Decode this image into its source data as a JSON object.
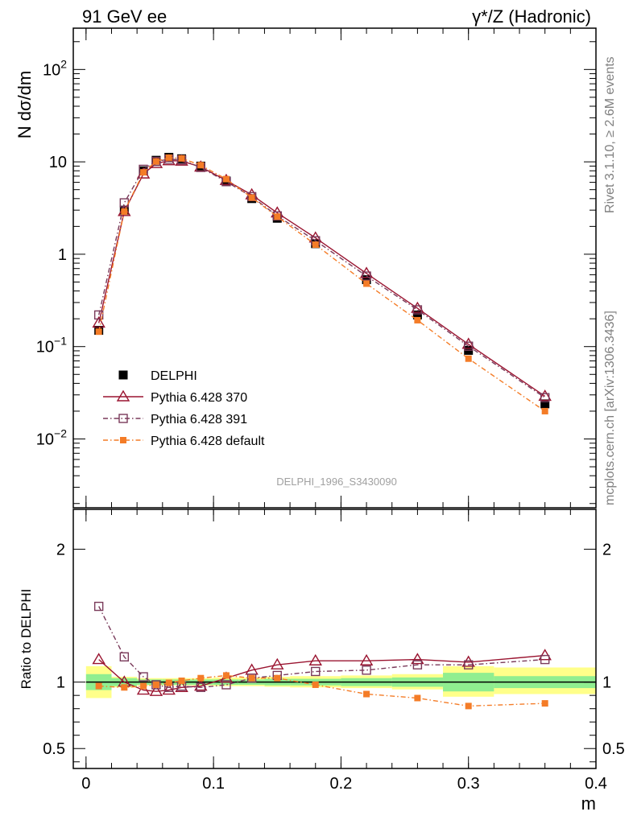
{
  "header": {
    "left": "91 GeV ee",
    "right": "γ*/Z (Hadronic)"
  },
  "side_labels": {
    "rivet": "Rivet 3.1.10, ≥ 2.6M events",
    "mcplots": "mcplots.cern.ch [arXiv:1306.3436]"
  },
  "watermark": "DELPHI_1996_S3430090",
  "chart_data": [
    {
      "type": "line",
      "panel": "main",
      "ylabel": "N dσ/dm",
      "xlabel": "m",
      "yscale": "log",
      "xlim": [
        -0.01,
        0.4
      ],
      "ylim": [
        0.0018,
        280
      ],
      "ytick_labels": [
        "10^-2",
        "10^-1",
        "1",
        "10",
        "10^2"
      ],
      "x": [
        0.01,
        0.03,
        0.045,
        0.055,
        0.065,
        0.075,
        0.09,
        0.11,
        0.13,
        0.15,
        0.18,
        0.22,
        0.26,
        0.3,
        0.36
      ],
      "series": [
        {
          "name": "DELPHI",
          "color": "#000000",
          "marker": "filled-square",
          "line": "none",
          "values": [
            0.15,
            3.0,
            8.0,
            10.4,
            11.2,
            10.8,
            9.0,
            6.2,
            4.0,
            2.45,
            1.3,
            0.53,
            0.22,
            0.091,
            0.024
          ]
        },
        {
          "name": "Pythia 6.428 370",
          "color": "#9a1430",
          "marker": "open-triangle",
          "line": "solid",
          "values": [
            0.18,
            2.9,
            7.4,
            9.6,
            10.3,
            10.2,
            8.8,
            6.3,
            4.4,
            2.8,
            1.5,
            0.62,
            0.26,
            0.106,
            0.029
          ]
        },
        {
          "name": "Pythia 6.428 391",
          "color": "#7a3a5a",
          "marker": "open-square",
          "line": "dashdot",
          "values": [
            0.22,
            3.6,
            8.3,
            10.1,
            10.7,
            10.5,
            8.7,
            6.1,
            4.2,
            2.6,
            1.4,
            0.58,
            0.25,
            0.101,
            0.028
          ]
        },
        {
          "name": "Pythia 6.428 default",
          "color": "#f47c27",
          "marker": "filled-square-small",
          "line": "dashdot",
          "values": [
            0.145,
            2.9,
            7.7,
            10.1,
            11.1,
            10.9,
            9.2,
            6.5,
            4.1,
            2.55,
            1.27,
            0.48,
            0.193,
            0.074,
            0.02
          ]
        }
      ]
    },
    {
      "type": "line",
      "panel": "ratio",
      "ylabel": "Ratio to DELPHI",
      "xlabel": "m",
      "xlim": [
        -0.01,
        0.4
      ],
      "ylim": [
        0.35,
        2.3
      ],
      "yticks": [
        0.5,
        1,
        2
      ],
      "ytick_labels": [
        "0.5",
        "1",
        "2"
      ],
      "xticks": [
        0,
        0.1,
        0.2,
        0.3,
        0.4
      ],
      "xtick_labels": [
        "0",
        "0.1",
        "0.2",
        "0.3",
        "0.4"
      ],
      "band_edges": [
        0.0,
        0.02,
        0.04,
        0.06,
        0.08,
        0.1,
        0.12,
        0.14,
        0.16,
        0.2,
        0.24,
        0.28,
        0.32,
        0.4
      ],
      "inner_band": [
        [
          0.94,
          1.06
        ],
        [
          0.97,
          1.03
        ],
        [
          0.98,
          1.02
        ],
        [
          0.98,
          1.02
        ],
        [
          0.98,
          1.02
        ],
        [
          0.98,
          1.02
        ],
        [
          0.98,
          1.02
        ],
        [
          0.975,
          1.025
        ],
        [
          0.975,
          1.025
        ],
        [
          0.97,
          1.03
        ],
        [
          0.965,
          1.035
        ],
        [
          0.93,
          1.07
        ],
        [
          0.955,
          1.045
        ]
      ],
      "outer_band": [
        [
          0.88,
          1.12
        ],
        [
          0.96,
          1.04
        ],
        [
          0.975,
          1.03
        ],
        [
          0.975,
          1.03
        ],
        [
          0.975,
          1.03
        ],
        [
          0.97,
          1.035
        ],
        [
          0.97,
          1.035
        ],
        [
          0.965,
          1.04
        ],
        [
          0.96,
          1.045
        ],
        [
          0.955,
          1.05
        ],
        [
          0.945,
          1.06
        ],
        [
          0.89,
          1.12
        ],
        [
          0.91,
          1.11
        ]
      ],
      "x": [
        0.01,
        0.03,
        0.045,
        0.055,
        0.065,
        0.075,
        0.09,
        0.11,
        0.13,
        0.15,
        0.18,
        0.22,
        0.26,
        0.3,
        0.36
      ],
      "series": [
        {
          "name": "Pythia 6.428 370",
          "color": "#9a1430",
          "marker": "open-triangle",
          "line": "solid",
          "values": [
            1.17,
            1.0,
            0.94,
            0.93,
            0.94,
            0.96,
            0.97,
            1.03,
            1.09,
            1.13,
            1.16,
            1.16,
            1.17,
            1.15,
            1.2
          ]
        },
        {
          "name": "Pythia 6.428 391",
          "color": "#7a3a5a",
          "marker": "open-square",
          "line": "dashdot",
          "values": [
            1.57,
            1.19,
            1.04,
            0.98,
            0.96,
            0.97,
            0.96,
            0.98,
            1.03,
            1.05,
            1.08,
            1.09,
            1.13,
            1.13,
            1.17
          ]
        },
        {
          "name": "Pythia 6.428 default",
          "color": "#f47c27",
          "marker": "filled-square-small",
          "line": "dashdot",
          "values": [
            0.97,
            0.96,
            0.97,
            0.98,
            0.995,
            1.01,
            1.03,
            1.05,
            1.03,
            1.03,
            0.98,
            0.91,
            0.88,
            0.82,
            0.84
          ]
        }
      ]
    }
  ]
}
